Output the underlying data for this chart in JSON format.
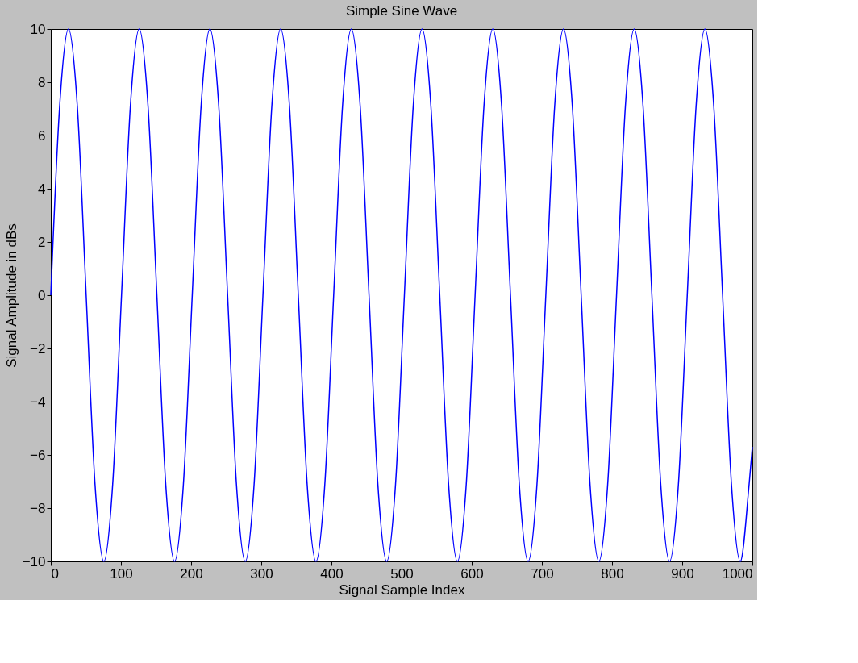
{
  "chart_data": {
    "type": "line",
    "title": "Simple Sine Wave",
    "xlabel": "Signal Sample Index",
    "ylabel": "Signal Amplitude in dBs",
    "x": [
      0,
      12.6,
      25.2,
      37.8,
      50.4,
      63,
      75.6,
      88.2,
      100.8,
      113.4,
      126,
      138.6,
      151.2,
      163.8,
      176.4,
      189,
      201.6,
      214.2,
      226.8,
      239.4,
      252,
      264.6,
      277.2,
      289.8,
      302.4,
      315,
      327.6,
      340.2,
      352.8,
      365.4,
      378,
      390.6,
      403.2,
      415.8,
      428.4,
      441,
      453.6,
      466.2,
      478.8,
      491.4,
      504,
      516.6,
      529.2,
      541.8,
      554.4,
      567,
      579.6,
      592.2,
      604.8,
      617.4,
      630,
      642.6,
      655.2,
      667.8,
      680.4,
      693,
      705.6,
      718.2,
      730.8,
      743.4,
      756,
      768.6,
      781.2,
      793.8,
      806.4,
      819,
      831.6,
      844.2,
      856.8,
      869.4,
      882,
      894.6,
      907.2,
      919.8,
      932.4,
      945,
      957.6,
      970.2,
      982.8,
      995.4,
      1000
    ],
    "series": [
      {
        "color": "#0000ff",
        "values": [
          0,
          7.1,
          10,
          7.1,
          0,
          -7.1,
          -10,
          -7.1,
          0,
          7.1,
          10,
          7.1,
          0,
          -7.1,
          -10,
          -7.1,
          0,
          7.1,
          10,
          7.1,
          0,
          -7.1,
          -10,
          -7.1,
          0,
          7.1,
          10,
          7.1,
          0,
          -7.1,
          -10,
          -7.1,
          0,
          7.1,
          10,
          7.1,
          0,
          -7.1,
          -10,
          -7.1,
          0,
          7.1,
          10,
          7.1,
          0,
          -7.1,
          -10,
          -7.1,
          0,
          7.1,
          10,
          7.1,
          0,
          -7.1,
          -10,
          -7.1,
          0,
          7.1,
          10,
          7.1,
          0,
          -7.1,
          -10,
          -7.1,
          0,
          7.1,
          10,
          7.1,
          0,
          -7.1,
          -10,
          -7.1,
          0,
          7.1,
          10,
          7.1,
          0,
          -7.1,
          -10,
          -7.1,
          -5.7
        ]
      }
    ],
    "xlim": [
      0,
      1000
    ],
    "xticks": [
      0,
      100,
      200,
      300,
      400,
      500,
      600,
      700,
      800,
      900,
      1000
    ],
    "ylim": [
      -10,
      10
    ],
    "yticks": [
      -10,
      -8,
      -6,
      -4,
      -2,
      0,
      2,
      4,
      6,
      8,
      10
    ],
    "grid": false,
    "legend": false,
    "marker": "none",
    "line_style": "solid"
  }
}
